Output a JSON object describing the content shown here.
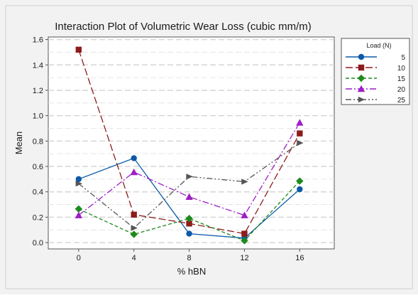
{
  "chart_data": {
    "type": "line",
    "title": "Interaction Plot of Volumetric Wear Loss (cubic mm/m)",
    "xlabel": "% hBN",
    "ylabel": "Mean",
    "categories": [
      "0",
      "4",
      "8",
      "12",
      "16"
    ],
    "x": [
      0,
      4,
      8,
      12,
      16
    ],
    "ylim": [
      -0.05,
      1.62
    ],
    "yticks": [
      "0.0",
      "0.2",
      "0.4",
      "0.6",
      "0.8",
      "1.0",
      "1.2",
      "1.4",
      "1.6"
    ],
    "grid": true,
    "legend": {
      "title": "Load (N)",
      "placement": "right"
    },
    "series": [
      {
        "name": "5",
        "color": "#0b5aa8",
        "marker": "circle",
        "dash": "solid",
        "values": [
          0.5,
          0.665,
          0.07,
          0.035,
          0.42
        ]
      },
      {
        "name": "10",
        "color": "#8e1b1b",
        "marker": "square",
        "dash": "longdash",
        "values": [
          1.52,
          0.22,
          0.15,
          0.07,
          0.86
        ]
      },
      {
        "name": "15",
        "color": "#1d8a1d",
        "marker": "diamond",
        "dash": "dash",
        "values": [
          0.265,
          0.065,
          0.19,
          0.015,
          0.485
        ]
      },
      {
        "name": "20",
        "color": "#9c1fc4",
        "marker": "triangle",
        "dash": "dashdot",
        "values": [
          0.215,
          0.555,
          0.36,
          0.215,
          0.945
        ]
      },
      {
        "name": "25",
        "color": "#555555",
        "marker": "arrow",
        "dash": "dashdotdot",
        "values": [
          0.465,
          0.115,
          0.52,
          0.48,
          0.785
        ]
      }
    ]
  }
}
